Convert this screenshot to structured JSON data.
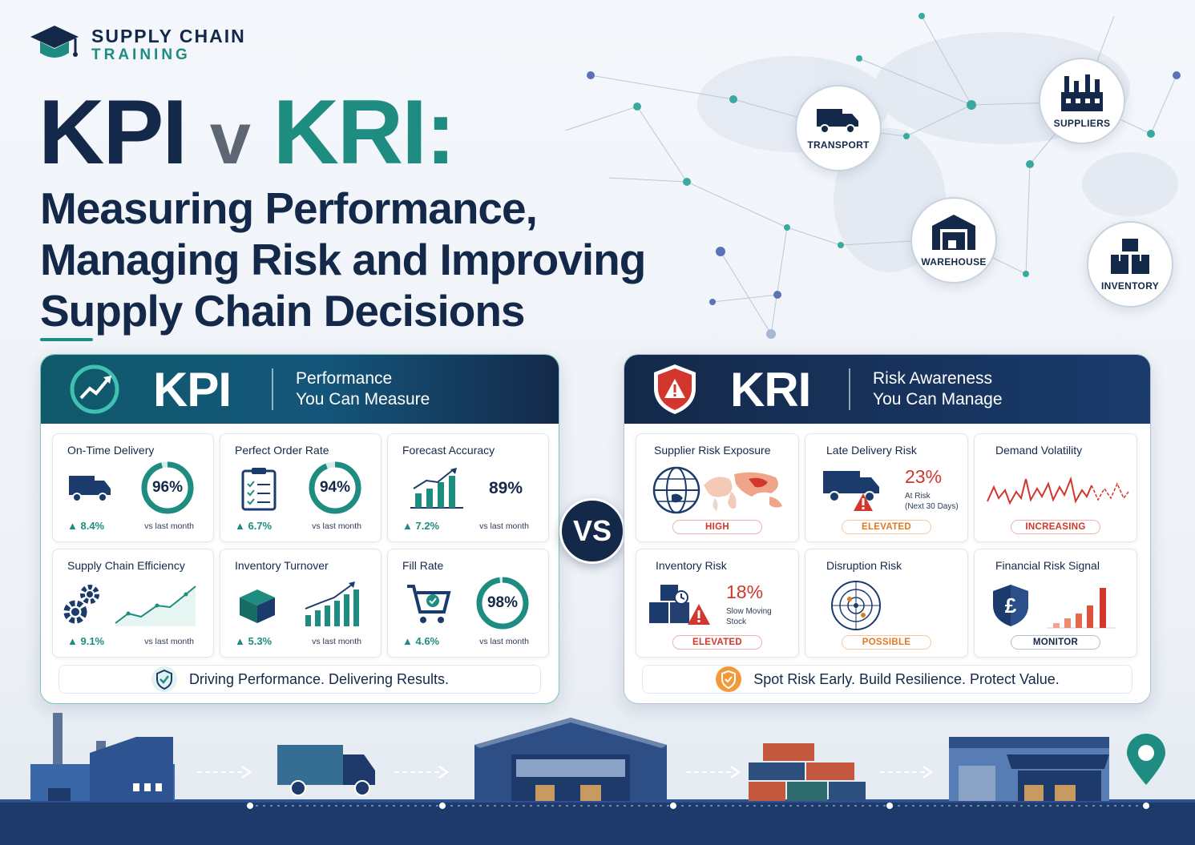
{
  "brand": {
    "name": "SUPPLY CHAIN",
    "sub": "TRAINING"
  },
  "headline": {
    "kpi": "KPI",
    "v": "v",
    "kri": "KRI:"
  },
  "subtitle": {
    "line1": "Measuring Performance,",
    "line2": "Managing Risk and Improving",
    "line3": "Supply Chain Decisions"
  },
  "network": {
    "transport": "TRANSPORT",
    "suppliers": "SUPPLIERS",
    "warehouse": "WAREHOUSE",
    "inventory": "INVENTORY"
  },
  "kpi": {
    "title": "KPI",
    "tag_line1": "Performance",
    "tag_line2": "You Can Measure",
    "cards": [
      {
        "title": "On-Time Delivery",
        "value": "96%",
        "percent": 96,
        "delta": "8.4%",
        "note": "vs last month",
        "icon": "truck-icon"
      },
      {
        "title": "Perfect Order Rate",
        "value": "94%",
        "percent": 94,
        "delta": "6.7%",
        "note": "vs last month",
        "icon": "clipboard-icon"
      },
      {
        "title": "Forecast Accuracy",
        "value": "89%",
        "delta": "7.2%",
        "note": "vs last month",
        "icon": "bar-chart-icon"
      },
      {
        "title": "Supply Chain Efficiency",
        "delta": "9.1%",
        "note": "vs last month",
        "icon": "gears-icon"
      },
      {
        "title": "Inventory Turnover",
        "delta": "5.3%",
        "note": "vs last month",
        "icon": "box-icon"
      },
      {
        "title": "Fill Rate",
        "value": "98%",
        "percent": 98,
        "delta": "4.6%",
        "note": "vs last month",
        "icon": "cart-icon"
      }
    ],
    "footer": "Driving Performance. Delivering Results."
  },
  "vs": "VS",
  "kri": {
    "title": "KRI",
    "tag_line1": "Risk Awareness",
    "tag_line2": "You Can Manage",
    "cards": [
      {
        "title": "Supplier Risk Exposure",
        "badge": "HIGH",
        "icon": "globe-icon"
      },
      {
        "title": "Late Delivery Risk",
        "value": "23%",
        "note_line1": "At Risk",
        "note_line2": "(Next 30 Days)",
        "badge": "ELEVATED",
        "icon": "truck-warning-icon"
      },
      {
        "title": "Demand Volatility",
        "badge": "INCREASING",
        "icon": "volatility-line-icon"
      },
      {
        "title": "Inventory Risk",
        "value": "18%",
        "note_line1": "Slow Moving",
        "note_line2": "Stock",
        "badge": "ELEVATED",
        "icon": "boxes-warning-icon"
      },
      {
        "title": "Disruption Risk",
        "badge": "POSSIBLE",
        "icon": "radar-icon"
      },
      {
        "title": "Financial Risk Signal",
        "badge": "MONITOR",
        "icon": "pound-shield-icon"
      }
    ],
    "footer": "Spot Risk Early. Build Resilience. Protect Value."
  },
  "colors": {
    "navy": "#14294a",
    "teal": "#1e8c80",
    "red": "#d2362c",
    "orange": "#e07a22"
  }
}
